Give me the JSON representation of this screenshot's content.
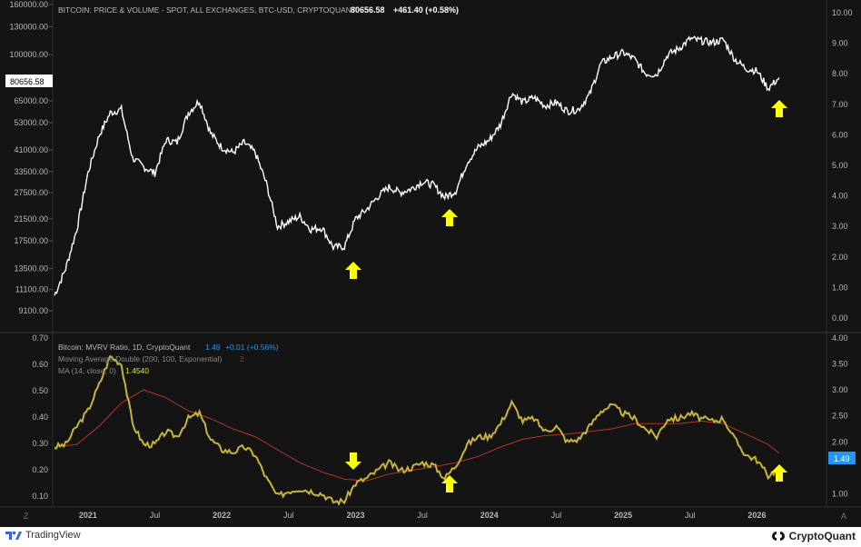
{
  "colors": {
    "background": "#141414",
    "price_line": "#ffffff",
    "mvrv_line": "#c9b33a",
    "ema_line": "#b2352a",
    "ma_line": "#e0e040",
    "arrow": "#ffff00",
    "axis_text": "#b8b8b8",
    "badge_blue": "#2196f3"
  },
  "top_panel": {
    "title": "BITCOIN: PRICE & VOLUME - SPOT, ALL EXCHANGES, BTC-USD, CRYPTOQUANT",
    "last_value": "80656.58",
    "change": "+461.40 (+0.58%)",
    "price_badge": "80656.58"
  },
  "bottom_panel": {
    "legend1_label": "Bitcoin: MVRV Ratio, 1D, CryptoQuant",
    "legend1_value": "1.49",
    "legend1_change": "+0.01 (+0.56%)",
    "legend2_label": "Moving Average Double (200, 100, Exponential)",
    "legend2_value": "2",
    "legend3_label": "MA (14, close, 0)",
    "legend3_value": "1.4540",
    "mvrv_badge": "1.49"
  },
  "footer": {
    "left_brand": "TradingView",
    "right_brand": "CryptoQuant"
  },
  "scale_buttons": {
    "left": "Z",
    "right": "A"
  },
  "chart_data": [
    {
      "type": "line",
      "title": "BITCOIN: PRICE & VOLUME - SPOT, ALL EXCHANGES, BTC-USD, CRYPTOQUANT",
      "scale": "log",
      "ylim": [
        8500,
        160000
      ],
      "left_ticks": [
        "160000.00",
        "130000.00",
        "100000.00",
        "80656.58",
        "65000.00",
        "53000.00",
        "41000.00",
        "33500.00",
        "27500.00",
        "21500.00",
        "17500.00",
        "13500.00",
        "11100.00",
        "9100.00"
      ],
      "right_ticks": [
        "10.00",
        "9.00",
        "8.00",
        "7.00",
        "6.00",
        "5.00",
        "4.00",
        "3.00",
        "2.00",
        "1.00",
        "0.00"
      ],
      "series": [
        {
          "x": [
            "2020-10",
            "2020-11",
            "2020-12",
            "2021-01",
            "2021-02",
            "2021-03",
            "2021-04",
            "2021-05",
            "2021-06",
            "2021-07",
            "2021-08",
            "2021-09",
            "2021-10",
            "2021-11",
            "2021-12",
            "2022-01",
            "2022-02",
            "2022-03",
            "2022-04",
            "2022-05",
            "2022-06",
            "2022-07",
            "2022-08",
            "2022-09",
            "2022-10",
            "2022-11",
            "2022-12",
            "2023-01",
            "2023-02",
            "2023-03",
            "2023-04",
            "2023-05",
            "2023-06",
            "2023-07",
            "2023-08",
            "2023-09",
            "2023-10",
            "2023-11",
            "2023-12",
            "2024-01",
            "2024-02",
            "2024-03",
            "2024-04",
            "2024-05",
            "2024-06",
            "2024-07",
            "2024-08",
            "2024-09",
            "2024-10",
            "2024-11",
            "2024-12",
            "2025-01",
            "2025-02",
            "2025-03",
            "2025-04",
            "2025-05",
            "2025-06",
            "2025-07",
            "2025-08",
            "2025-09",
            "2025-10",
            "2025-11",
            "2025-12",
            "2026-01",
            "2026-02",
            "2026-03"
          ],
          "values": [
            10500,
            13500,
            19500,
            33000,
            47000,
            58000,
            60000,
            38000,
            35000,
            33000,
            45000,
            44000,
            58000,
            65000,
            48000,
            42000,
            40000,
            44000,
            40000,
            30000,
            20000,
            21000,
            22000,
            19500,
            19800,
            16500,
            16600,
            21500,
            23500,
            26500,
            29000,
            27500,
            28500,
            30500,
            29500,
            26300,
            28000,
            36500,
            42000,
            45000,
            52000,
            70000,
            64000,
            67000,
            62000,
            64000,
            59000,
            60000,
            69000,
            92000,
            98000,
            102000,
            96000,
            84000,
            83000,
            100000,
            106000,
            116000,
            114000,
            112000,
            115000,
            96000,
            88000,
            86000,
            73000,
            80656.58
          ]
        }
      ]
    },
    {
      "type": "line",
      "title": "Bitcoin: MVRV Ratio, 1D, CryptoQuant",
      "ylim": [
        0.7,
        4.0
      ],
      "left_ticks": [
        "0.70",
        "0.60",
        "0.50",
        "0.40",
        "0.30",
        "0.20",
        "0.10"
      ],
      "right_ticks": [
        "4.00",
        "3.50",
        "3.00",
        "2.50",
        "2.00",
        "1.50",
        "1.00"
      ],
      "x_tick_labels": [
        "2021",
        "Jul",
        "2022",
        "Jul",
        "2023",
        "Jul",
        "2024",
        "Jul",
        "2025",
        "Jul",
        "2026"
      ],
      "series": [
        {
          "name": "Bitcoin: MVRV Ratio, 1D, CryptoQuant",
          "x": [
            "2020-10",
            "2020-11",
            "2020-12",
            "2021-01",
            "2021-02",
            "2021-03",
            "2021-04",
            "2021-05",
            "2021-06",
            "2021-07",
            "2021-08",
            "2021-09",
            "2021-10",
            "2021-11",
            "2021-12",
            "2022-01",
            "2022-02",
            "2022-03",
            "2022-04",
            "2022-05",
            "2022-06",
            "2022-07",
            "2022-08",
            "2022-09",
            "2022-10",
            "2022-11",
            "2022-12",
            "2023-01",
            "2023-02",
            "2023-03",
            "2023-04",
            "2023-05",
            "2023-06",
            "2023-07",
            "2023-08",
            "2023-09",
            "2023-10",
            "2023-11",
            "2023-12",
            "2024-01",
            "2024-02",
            "2024-03",
            "2024-04",
            "2024-05",
            "2024-06",
            "2024-07",
            "2024-08",
            "2024-09",
            "2024-10",
            "2024-11",
            "2024-12",
            "2025-01",
            "2025-02",
            "2025-03",
            "2025-04",
            "2025-05",
            "2025-06",
            "2025-07",
            "2025-08",
            "2025-09",
            "2025-10",
            "2025-11",
            "2025-12",
            "2026-01",
            "2026-02",
            "2026-03"
          ],
          "values": [
            1.9,
            1.95,
            2.3,
            2.6,
            3.1,
            3.65,
            3.5,
            2.35,
            1.95,
            1.95,
            2.2,
            2.1,
            2.45,
            2.55,
            2.05,
            1.85,
            1.8,
            1.9,
            1.75,
            1.3,
            0.95,
            1.05,
            1.1,
            1.05,
            1.0,
            0.85,
            0.86,
            1.2,
            1.3,
            1.45,
            1.6,
            1.45,
            1.5,
            1.6,
            1.55,
            1.3,
            1.55,
            1.95,
            2.1,
            2.1,
            2.35,
            2.75,
            2.4,
            2.45,
            2.2,
            2.3,
            2.0,
            2.05,
            2.3,
            2.6,
            2.7,
            2.55,
            2.45,
            2.25,
            2.1,
            2.45,
            2.45,
            2.55,
            2.45,
            2.4,
            2.45,
            2.05,
            1.75,
            1.65,
            1.35,
            1.49
          ]
        },
        {
          "name": "Moving Average Double (200, 100, Exponential)",
          "x": [
            "2020-10",
            "2020-12",
            "2021-02",
            "2021-04",
            "2021-06",
            "2021-08",
            "2021-10",
            "2021-12",
            "2022-02",
            "2022-04",
            "2022-06",
            "2022-08",
            "2022-10",
            "2022-12",
            "2023-02",
            "2023-04",
            "2023-06",
            "2023-08",
            "2023-10",
            "2023-12",
            "2024-02",
            "2024-04",
            "2024-06",
            "2024-08",
            "2024-10",
            "2024-12",
            "2025-02",
            "2025-04",
            "2025-06",
            "2025-08",
            "2025-10",
            "2025-12",
            "2026-02",
            "2026-03"
          ],
          "values": [
            1.9,
            1.95,
            2.3,
            2.75,
            3.0,
            2.85,
            2.6,
            2.45,
            2.25,
            2.1,
            1.85,
            1.6,
            1.42,
            1.28,
            1.25,
            1.38,
            1.45,
            1.52,
            1.6,
            1.72,
            1.9,
            2.05,
            2.12,
            2.15,
            2.2,
            2.25,
            2.35,
            2.35,
            2.35,
            2.4,
            2.35,
            2.15,
            1.95,
            1.78
          ]
        }
      ]
    }
  ]
}
